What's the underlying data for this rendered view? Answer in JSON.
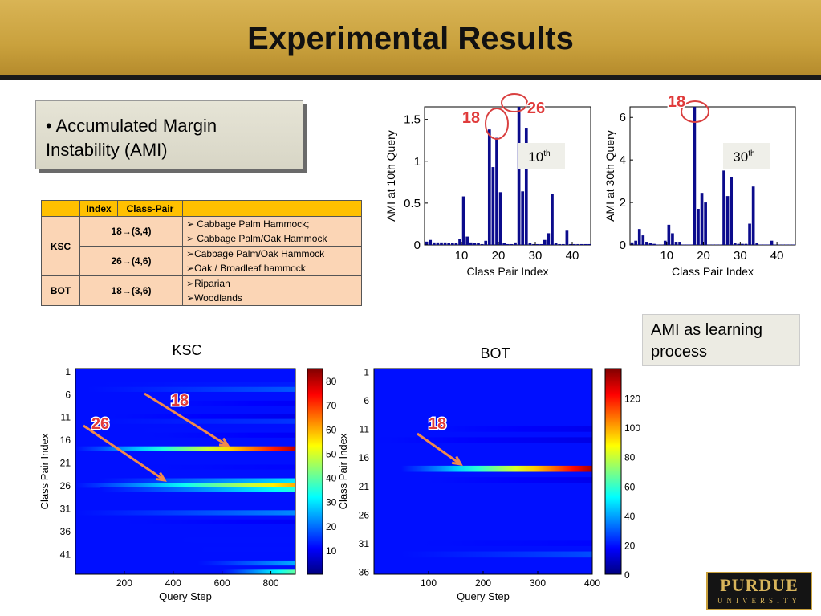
{
  "title": "Experimental Results",
  "ami_box": {
    "bullet": "•",
    "text": "Accumulated Margin Instability (AMI)"
  },
  "learning_box": "AMI as learning process",
  "table": {
    "headers": [
      "",
      "Index",
      "Class-Pair",
      ""
    ],
    "rows": [
      {
        "dataset": "KSC",
        "index": "18",
        "pair": "(3,4)",
        "classes": [
          "Cabbage Palm Hammock;",
          "Cabbage Palm/Oak Hammock"
        ]
      },
      {
        "dataset": "",
        "index": "26",
        "pair": "(4,6)",
        "classes": [
          "Cabbage Palm/Oak Hammock",
          "Oak / Broadleaf hammock"
        ]
      },
      {
        "dataset": "BOT",
        "index": "18",
        "pair": "(3,6)",
        "classes": [
          "Riparian",
          "Woodlands"
        ]
      }
    ]
  },
  "logo": {
    "name": "PURDUE",
    "sub": "UNIVERSITY"
  },
  "chart_data": [
    {
      "type": "bar",
      "xlabel": "Class Pair Index",
      "ylabel": "AMI at 10th Query",
      "badge": "10th",
      "xlim": [
        0,
        45
      ],
      "ylim": [
        0,
        1.65
      ],
      "xticks": [
        10,
        20,
        30,
        40
      ],
      "yticks": [
        0,
        0.5,
        1,
        1.5
      ],
      "annotations": [
        "18",
        "26"
      ],
      "color": "#0b0b8c",
      "x": [
        1,
        2,
        3,
        4,
        5,
        6,
        7,
        8,
        9,
        10,
        11,
        12,
        13,
        14,
        15,
        16,
        17,
        18,
        19,
        20,
        21,
        22,
        23,
        24,
        25,
        26,
        27,
        28,
        29,
        30,
        31,
        32,
        33,
        34,
        35,
        36,
        37,
        38,
        39,
        40,
        41,
        42,
        43,
        44,
        45
      ],
      "values": [
        0.04,
        0.06,
        0.03,
        0.03,
        0.03,
        0.03,
        0.02,
        0.02,
        0.02,
        0.07,
        0.58,
        0.1,
        0.03,
        0.02,
        0.02,
        0.01,
        0.05,
        1.38,
        0.93,
        1.28,
        0.63,
        0.02,
        0.01,
        0.01,
        0.03,
        1.66,
        0.64,
        1.4,
        0.02,
        0.01,
        0.01,
        0.01,
        0.06,
        0.14,
        0.61,
        0.02,
        0.01,
        0.01,
        0.17,
        0.01,
        0.01,
        0.01,
        0.01,
        0.01,
        0.01
      ]
    },
    {
      "type": "bar",
      "xlabel": "Class Pair Index",
      "ylabel": "AMI at 30th Query",
      "badge": "30th",
      "xlim": [
        0,
        45
      ],
      "ylim": [
        0,
        6.5
      ],
      "xticks": [
        10,
        20,
        30,
        40
      ],
      "yticks": [
        0,
        2,
        4,
        6
      ],
      "annotations": [
        "18"
      ],
      "color": "#0b0b8c",
      "x": [
        1,
        2,
        3,
        4,
        5,
        6,
        7,
        8,
        9,
        10,
        11,
        12,
        13,
        14,
        15,
        16,
        17,
        18,
        19,
        20,
        21,
        22,
        23,
        24,
        25,
        26,
        27,
        28,
        29,
        30,
        31,
        32,
        33,
        34,
        35,
        36,
        37,
        38,
        39,
        40,
        41,
        42,
        43,
        44,
        45
      ],
      "values": [
        0.12,
        0.2,
        0.75,
        0.45,
        0.15,
        0.1,
        0.05,
        0.02,
        0.02,
        0.2,
        0.95,
        0.55,
        0.15,
        0.15,
        0.02,
        0.02,
        0.02,
        6.5,
        1.7,
        2.45,
        2.0,
        0.02,
        0.02,
        0.02,
        0.02,
        3.5,
        2.3,
        3.2,
        0.1,
        0.05,
        0.05,
        0.05,
        1.0,
        2.75,
        0.1,
        0.02,
        0.02,
        0.02,
        0.2,
        0.02,
        0.02,
        0.02,
        0.02,
        0.02,
        0.02
      ]
    },
    {
      "type": "heatmap",
      "title": "KSC",
      "xlabel": "Query Step",
      "ylabel": "Class Pair Index",
      "xlim": [
        0,
        900
      ],
      "ylim": [
        1,
        45
      ],
      "xticks": [
        200,
        400,
        600,
        800
      ],
      "yticks": [
        1,
        6,
        11,
        16,
        21,
        26,
        31,
        36,
        41
      ],
      "colorbar": {
        "min": 0,
        "max": 85,
        "ticks": [
          10,
          20,
          30,
          40,
          50,
          60,
          70,
          80
        ]
      },
      "annotations": [
        "18",
        "26"
      ],
      "rows": [
        {
          "index": 4,
          "start": 100,
          "level": 13
        },
        {
          "index": 5,
          "start": 50,
          "level": 18
        },
        {
          "index": 8,
          "start": 300,
          "level": 10
        },
        {
          "index": 11,
          "start": 150,
          "level": 9
        },
        {
          "index": 12,
          "start": 100,
          "level": 15
        },
        {
          "index": 14,
          "start": 100,
          "level": 12
        },
        {
          "index": 15,
          "start": 300,
          "level": 10
        },
        {
          "index": 18,
          "start": 0,
          "level": 80
        },
        {
          "index": 20,
          "start": 200,
          "level": 12
        },
        {
          "index": 22,
          "start": 200,
          "level": 11
        },
        {
          "index": 25,
          "start": 100,
          "level": 30
        },
        {
          "index": 26,
          "start": 0,
          "level": 60
        },
        {
          "index": 27,
          "start": 100,
          "level": 35
        },
        {
          "index": 28,
          "start": 200,
          "level": 12
        },
        {
          "index": 32,
          "start": 0,
          "level": 22
        },
        {
          "index": 34,
          "start": 200,
          "level": 10
        },
        {
          "index": 38,
          "start": 300,
          "level": 12
        },
        {
          "index": 40,
          "start": 400,
          "level": 12
        },
        {
          "index": 43,
          "start": 500,
          "level": 25
        },
        {
          "index": 45,
          "start": 600,
          "level": 40
        }
      ]
    },
    {
      "type": "heatmap",
      "title": "BOT",
      "xlabel": "Query Step",
      "ylabel": "Class Pair Index",
      "xlim": [
        0,
        400
      ],
      "ylim": [
        1,
        36
      ],
      "xticks": [
        100,
        200,
        300,
        400
      ],
      "yticks": [
        1,
        6,
        11,
        16,
        21,
        26,
        31,
        36
      ],
      "colorbar": {
        "min": 0,
        "max": 140,
        "ticks": [
          0,
          20,
          40,
          60,
          80,
          100,
          120
        ]
      },
      "annotations": [
        "18"
      ],
      "rows": [
        {
          "index": 11,
          "start": 100,
          "level": 15
        },
        {
          "index": 13,
          "start": 0,
          "level": 14
        },
        {
          "index": 18,
          "start": 50,
          "level": 135
        },
        {
          "index": 20,
          "start": 100,
          "level": 15
        },
        {
          "index": 31,
          "start": 50,
          "level": 18
        },
        {
          "index": 33,
          "start": 50,
          "level": 28
        }
      ]
    }
  ]
}
